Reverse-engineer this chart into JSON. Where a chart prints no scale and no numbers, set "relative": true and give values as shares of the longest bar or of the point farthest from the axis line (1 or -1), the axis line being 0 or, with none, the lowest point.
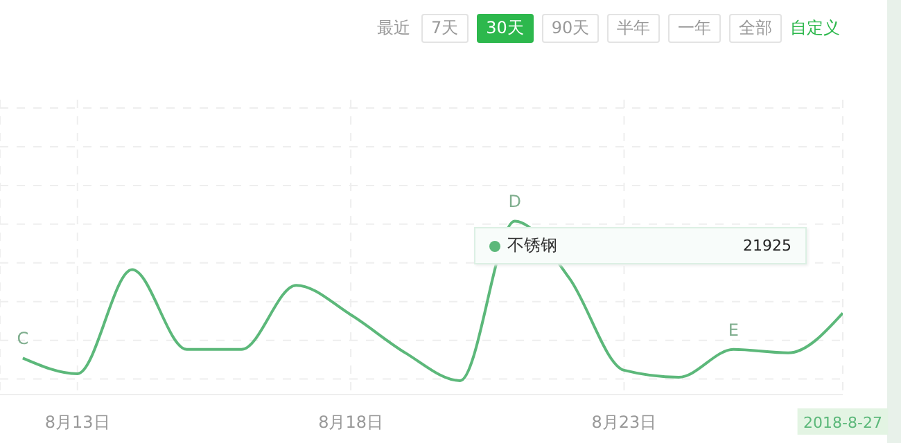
{
  "chart_data": {
    "type": "line",
    "relative": true,
    "x": [
      "2018-08-12",
      "2018-08-13",
      "2018-08-14",
      "2018-08-15",
      "2018-08-16",
      "2018-08-17",
      "2018-08-18",
      "2018-08-19",
      "2018-08-20",
      "2018-08-21",
      "2018-08-22",
      "2018-08-23",
      "2018-08-24",
      "2018-08-25",
      "2018-08-26",
      "2018-08-27"
    ],
    "series": [
      {
        "name": "不锈钢",
        "color": "#5cb87a",
        "values": [
          0.21,
          0.12,
          0.72,
          0.26,
          0.26,
          0.63,
          0.46,
          0.24,
          0.08,
          1,
          0.67,
          0.14,
          0.1,
          0.26,
          0.24,
          0.47
        ]
      }
    ],
    "xlim": [
      "2018-08-11T14:00",
      "2018-08-27"
    ],
    "xticks": [
      {
        "value": "2018-08-13",
        "label": "8月13日"
      },
      {
        "value": "2018-08-18",
        "label": "8月18日"
      },
      {
        "value": "2018-08-23",
        "label": "8月23日"
      },
      {
        "value": "2018-08-27",
        "label": "2018-8-27"
      }
    ],
    "grid": true,
    "marker": "none",
    "line_style": "solid",
    "legend": "top right",
    "annotations": [
      {
        "text": "C",
        "x": "2018-08-12",
        "y": 0.21
      },
      {
        "text": "D",
        "x": "2018-08-21",
        "y": 1
      },
      {
        "text": "E",
        "x": "2018-08-25",
        "y": 0.26
      },
      "21925",
      "最近",
      "7天",
      "30天",
      "90天",
      "半年",
      "一年",
      "全部",
      "自定义"
    ]
  }
}
